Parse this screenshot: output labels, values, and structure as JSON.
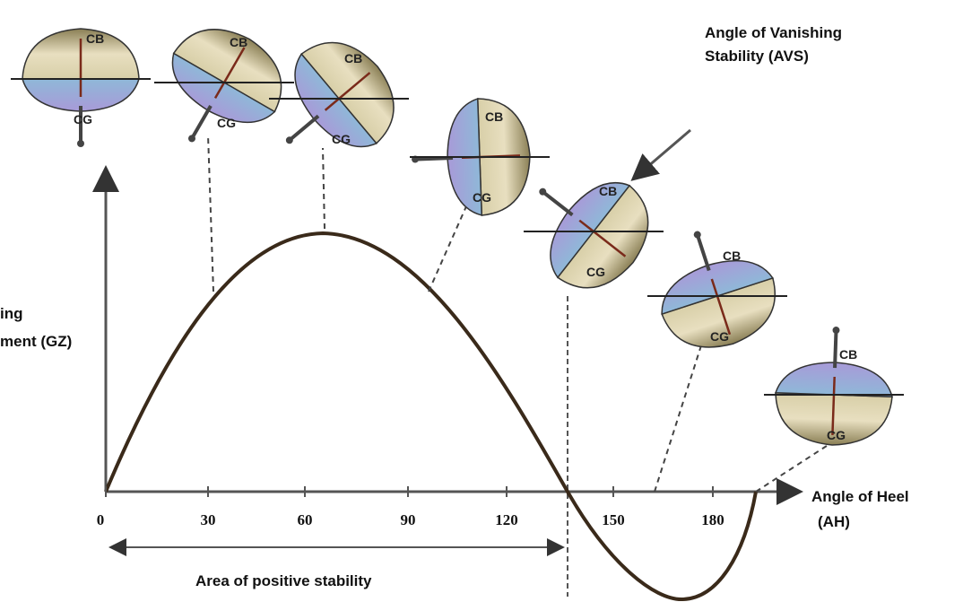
{
  "annotations": {
    "avs": [
      "Angle of Vanishing",
      "Stability (AVS)"
    ],
    "gz_axis": [
      "ing",
      "ment (GZ)"
    ],
    "heel_axis": [
      "Angle of Heel",
      "(AH)"
    ],
    "area": "Area of positive stability"
  },
  "x_axis_labels": [
    "0",
    "30",
    "60",
    "90",
    "120",
    "150",
    "180"
  ],
  "boats": [
    {
      "cb": "CB",
      "cg": "CG"
    },
    {
      "cb": "CB",
      "cg": "CG"
    },
    {
      "cb": "CB",
      "cg": "CG"
    },
    {
      "cb": "CB",
      "cg": "CG"
    },
    {
      "cb": "CB",
      "cg": "CG"
    },
    {
      "cb": "CB",
      "cg": "CG"
    },
    {
      "cb": "CB",
      "cg": "CG"
    }
  ]
}
